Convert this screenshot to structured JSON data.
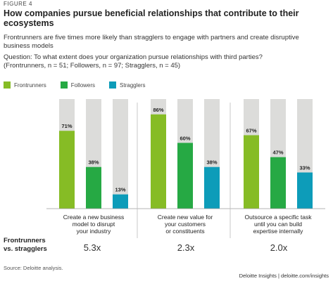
{
  "figure_label": "FIGURE 4",
  "title": "How companies pursue beneficial relationships that contribute to their ecosystems",
  "subtitle": "Frontrunners are five times more likely than stragglers to engage with partners and create disruptive business models",
  "question": "Question: To what extent does your organization pursue relationships with third parties?",
  "sample": "(Frontrunners, n = 51; Followers, n = 97; Stragglers, n = 45)",
  "ratio_title_line1": "Frontrunners",
  "ratio_title_line2": "vs. stragglers",
  "source": "Source: Deloitte analysis.",
  "credit": "Deloitte Insights | deloitte.com/insights",
  "colors": {
    "Frontrunners": "#86bc25",
    "Followers": "#26a944",
    "Stragglers": "#0d9cb9",
    "background_bar": "#dcdcda"
  },
  "chart_data": {
    "type": "bar",
    "ylim": [
      0,
      100
    ],
    "series": [
      {
        "name": "Frontrunners",
        "values": [
          71,
          86,
          67
        ]
      },
      {
        "name": "Followers",
        "values": [
          38,
          60,
          47
        ]
      },
      {
        "name": "Stragglers",
        "values": [
          13,
          38,
          33
        ]
      }
    ],
    "categories": [
      [
        "Create a new business",
        "model to disrupt",
        "your industry"
      ],
      [
        "Create new value for",
        "your customers",
        "or constituents"
      ],
      [
        "Outsource a specific task",
        "until you can build",
        "expertise internally"
      ]
    ],
    "value_labels": [
      [
        "71%",
        "38%",
        "13%"
      ],
      [
        "86%",
        "60%",
        "38%"
      ],
      [
        "67%",
        "47%",
        "33%"
      ]
    ],
    "ratios": [
      "5.3x",
      "2.3x",
      "2.0x"
    ]
  }
}
